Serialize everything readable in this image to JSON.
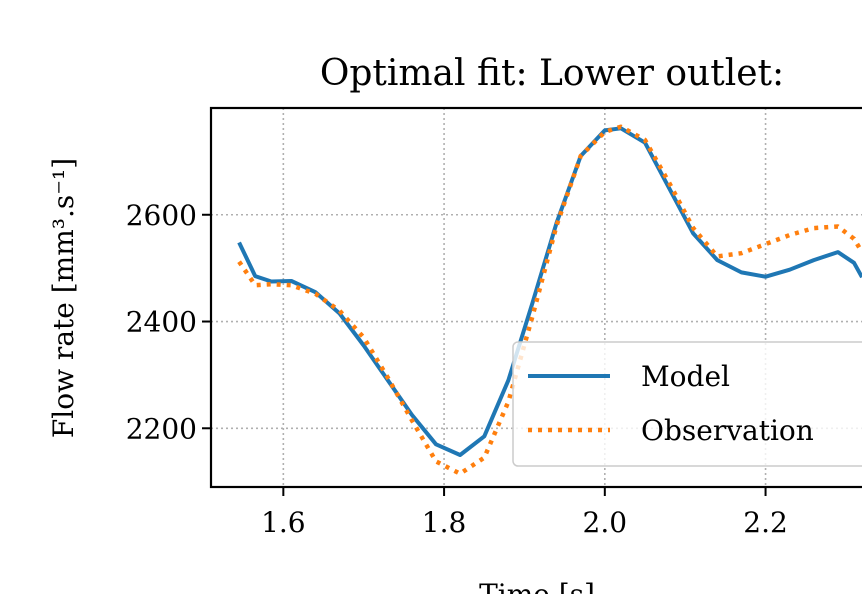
{
  "chart_data": {
    "type": "line",
    "title": "Optimal fit: Lower outlet:",
    "xlabel": "Time [s]",
    "ylabel": "Flow rate [mm³.s⁻¹]",
    "xlim": [
      1.51,
      2.32
    ],
    "ylim": [
      2090,
      2800
    ],
    "xticks": [
      1.6,
      1.8,
      2.0,
      2.2
    ],
    "xtick_labels": [
      "1.6",
      "1.8",
      "2.0",
      "2.2"
    ],
    "yticks": [
      2200,
      2400,
      2600
    ],
    "ytick_labels": [
      "2200",
      "2400",
      "2600"
    ],
    "grid": true,
    "legend_position": "center-right",
    "series": [
      {
        "name": "Model",
        "color": "#1f77b4",
        "style": "solid",
        "x": [
          1.545,
          1.565,
          1.585,
          1.61,
          1.64,
          1.67,
          1.7,
          1.73,
          1.76,
          1.79,
          1.82,
          1.85,
          1.88,
          1.91,
          1.94,
          1.97,
          2.0,
          2.02,
          2.05,
          2.08,
          2.11,
          2.14,
          2.17,
          2.2,
          2.23,
          2.26,
          2.29,
          2.31,
          2.32
        ],
        "y": [
          2548,
          2485,
          2475,
          2476,
          2455,
          2415,
          2355,
          2290,
          2225,
          2170,
          2150,
          2185,
          2290,
          2435,
          2585,
          2710,
          2758,
          2762,
          2735,
          2650,
          2565,
          2515,
          2492,
          2484,
          2497,
          2515,
          2530,
          2510,
          2483
        ]
      },
      {
        "name": "Observation",
        "color": "#ff7f0e",
        "style": "dotted",
        "x": [
          1.545,
          1.565,
          1.585,
          1.61,
          1.64,
          1.67,
          1.7,
          1.73,
          1.76,
          1.79,
          1.82,
          1.85,
          1.88,
          1.91,
          1.94,
          1.97,
          2.0,
          2.02,
          2.05,
          2.08,
          2.11,
          2.14,
          2.17,
          2.2,
          2.23,
          2.26,
          2.29,
          2.31,
          2.32
        ],
        "y": [
          2512,
          2468,
          2470,
          2468,
          2452,
          2420,
          2370,
          2295,
          2215,
          2138,
          2115,
          2145,
          2250,
          2410,
          2580,
          2710,
          2755,
          2765,
          2740,
          2660,
          2575,
          2522,
          2528,
          2545,
          2562,
          2575,
          2578,
          2555,
          2530
        ]
      }
    ]
  }
}
